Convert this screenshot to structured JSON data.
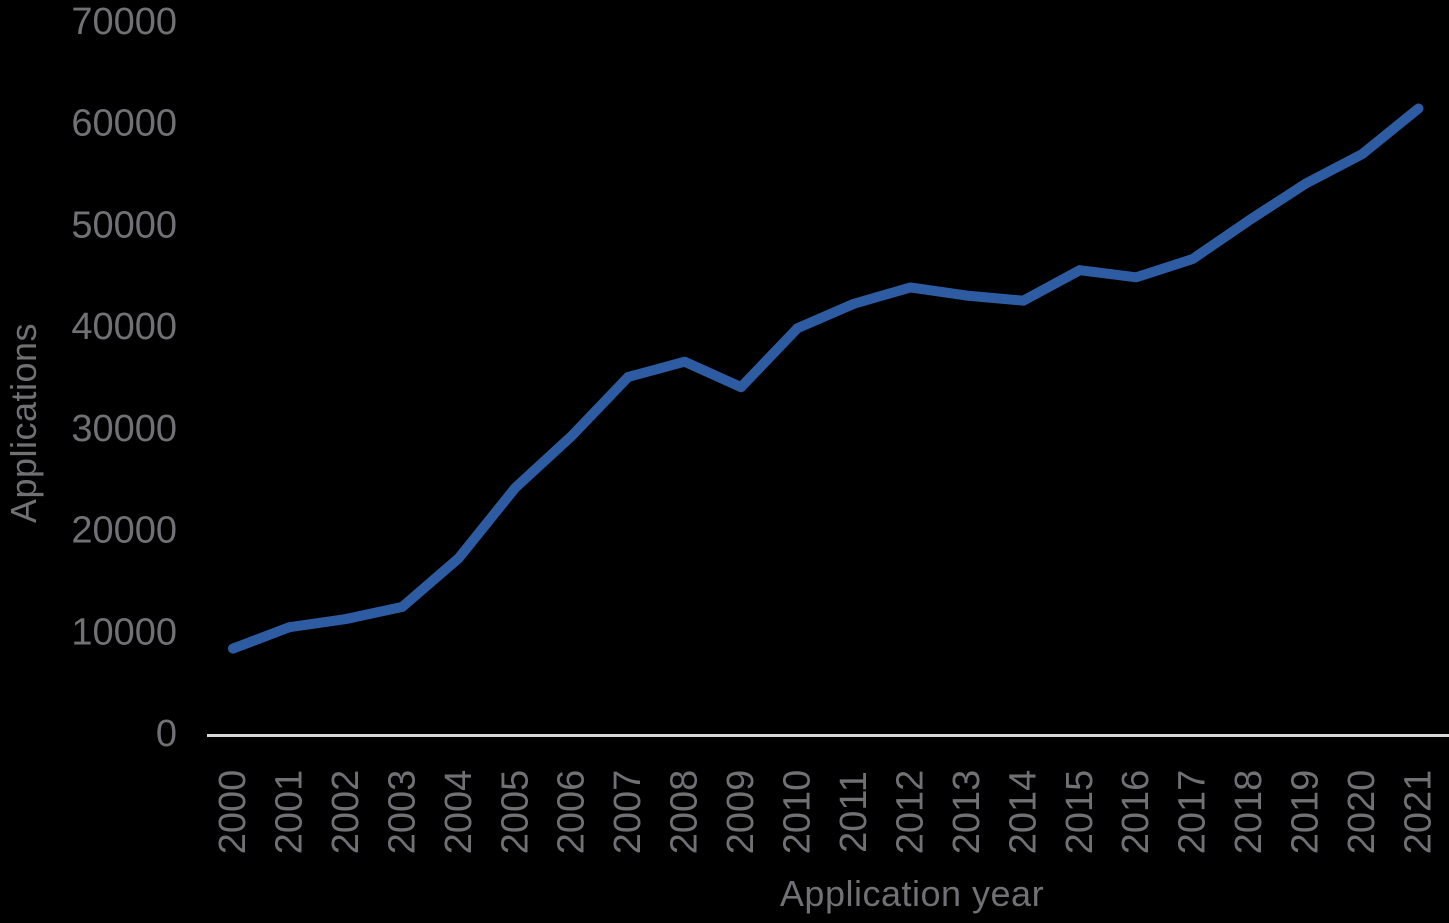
{
  "chart_data": {
    "type": "line",
    "title": "",
    "xlabel": "Application year",
    "ylabel": "Applications",
    "categories": [
      "2000",
      "2001",
      "2002",
      "2003",
      "2004",
      "2005",
      "2006",
      "2007",
      "2008",
      "2009",
      "2010",
      "2011",
      "2012",
      "2013",
      "2014",
      "2015",
      "2016",
      "2017",
      "2018",
      "2019",
      "2020",
      "2021"
    ],
    "series": [
      {
        "name": "Applications",
        "values": [
          8400,
          10500,
          11300,
          12500,
          17300,
          24200,
          29300,
          35100,
          36600,
          34100,
          39900,
          42300,
          43900,
          43100,
          42600,
          45600,
          44900,
          46700,
          50500,
          54100,
          57000,
          61500
        ]
      }
    ],
    "yticks": [
      0,
      10000,
      20000,
      30000,
      40000,
      50000,
      60000,
      70000
    ],
    "ylim": [
      0,
      70000
    ],
    "grid": false,
    "legend": false,
    "colors": {
      "line": "#2e5ca3",
      "tick_text": "#707075",
      "axis_line": "#d9d9d9",
      "background": "#000000"
    }
  }
}
